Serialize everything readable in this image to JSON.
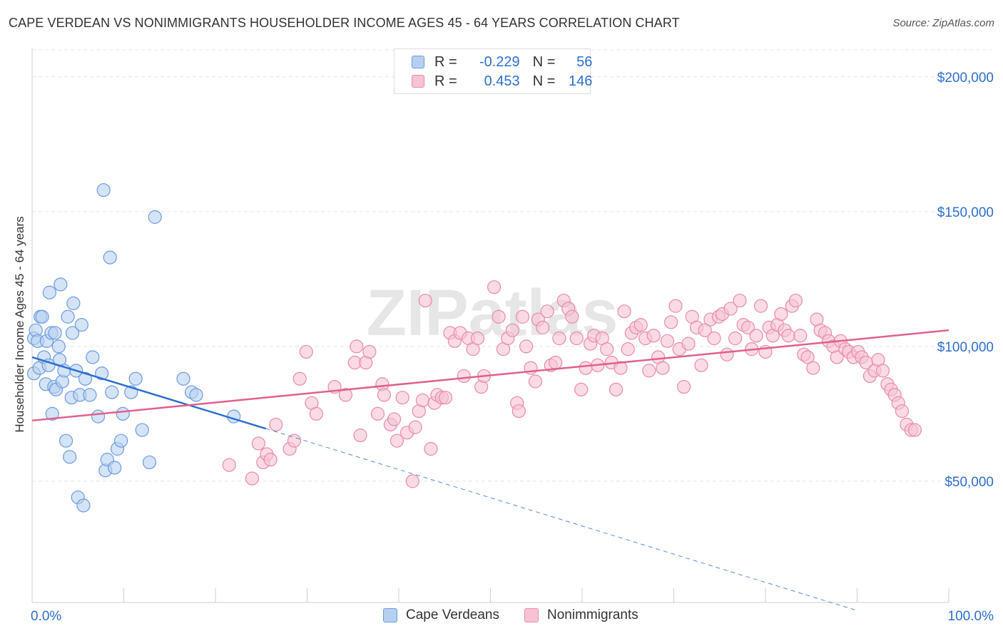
{
  "title": "CAPE VERDEAN VS NONIMMIGRANTS HOUSEHOLDER INCOME AGES 45 - 64 YEARS CORRELATION CHART",
  "source": "Source: ZipAtlas.com",
  "watermark": "ZIPatlas",
  "colors": {
    "blue_fill": "#b7d0f0",
    "blue_stroke": "#6b9be0",
    "blue_line": "#2d6fcf",
    "pink_fill": "#f7c3d4",
    "pink_stroke": "#e98aa9",
    "pink_line": "#e0618b",
    "accent_text": "#2d6fcf"
  },
  "legend": {
    "rows": [
      {
        "r_label": "R =",
        "r_value": "-0.229",
        "n_label": "N =",
        "n_value": "56"
      },
      {
        "r_label": "R =",
        "r_value": "0.453",
        "n_label": "N =",
        "n_value": "146"
      }
    ]
  },
  "bottom_legend": [
    "Cape Verdeans",
    "Nonimmigrants"
  ],
  "chart_data": {
    "type": "scatter",
    "title": "CAPE VERDEAN VS NONIMMIGRANTS HOUSEHOLDER INCOME AGES 45 - 64 YEARS CORRELATION CHART",
    "xlabel": "",
    "ylabel": "Householder Income Ages 45 - 64 years",
    "xlim": [
      0,
      100
    ],
    "ylim": [
      5000,
      210000
    ],
    "x_tick_labels": [
      "0.0%",
      "100.0%"
    ],
    "y_ticks": [
      50000,
      100000,
      150000,
      200000
    ],
    "y_tick_labels": [
      "$50,000",
      "$100,000",
      "$150,000",
      "$200,000"
    ],
    "grid": true,
    "legend_position": "top-center",
    "series": [
      {
        "name": "Cape Verdeans",
        "r": -0.229,
        "n": 56,
        "trend": {
          "x0": 0,
          "y0": 96000,
          "x1": 25.5,
          "y1": 69500,
          "dash_x1": 90,
          "dash_y1": 2000
        },
        "points": [
          [
            0.2,
            103000
          ],
          [
            0.2,
            90000
          ],
          [
            0.4,
            106000
          ],
          [
            0.6,
            102000
          ],
          [
            0.8,
            92000
          ],
          [
            0.9,
            111000
          ],
          [
            1.1,
            111000
          ],
          [
            1.3,
            96000
          ],
          [
            1.5,
            86000
          ],
          [
            1.6,
            102000
          ],
          [
            1.8,
            93000
          ],
          [
            1.9,
            120000
          ],
          [
            2.1,
            105000
          ],
          [
            2.2,
            75000
          ],
          [
            2.4,
            85000
          ],
          [
            2.5,
            105000
          ],
          [
            2.6,
            84000
          ],
          [
            2.9,
            100000
          ],
          [
            3.0,
            95000
          ],
          [
            3.1,
            123000
          ],
          [
            3.3,
            87000
          ],
          [
            3.5,
            91000
          ],
          [
            3.7,
            65000
          ],
          [
            3.9,
            111000
          ],
          [
            4.1,
            59000
          ],
          [
            4.3,
            81000
          ],
          [
            4.4,
            105000
          ],
          [
            4.5,
            116000
          ],
          [
            4.8,
            91000
          ],
          [
            5.0,
            44000
          ],
          [
            5.2,
            82000
          ],
          [
            5.4,
            108000
          ],
          [
            5.6,
            41000
          ],
          [
            5.8,
            88000
          ],
          [
            6.3,
            82000
          ],
          [
            6.6,
            96000
          ],
          [
            7.2,
            74000
          ],
          [
            7.6,
            90000
          ],
          [
            7.8,
            158000
          ],
          [
            8.0,
            54000
          ],
          [
            8.2,
            58000
          ],
          [
            8.5,
            133000
          ],
          [
            8.7,
            83000
          ],
          [
            9.0,
            55000
          ],
          [
            9.3,
            62000
          ],
          [
            9.7,
            65000
          ],
          [
            9.9,
            75000
          ],
          [
            10.8,
            83000
          ],
          [
            11.3,
            88000
          ],
          [
            12.0,
            69000
          ],
          [
            12.8,
            57000
          ],
          [
            13.4,
            148000
          ],
          [
            16.5,
            88000
          ],
          [
            17.4,
            83000
          ],
          [
            17.9,
            82000
          ],
          [
            22.0,
            74000
          ]
        ]
      },
      {
        "name": "Nonimmigrants",
        "r": 0.453,
        "n": 146,
        "trend": {
          "x0": 0,
          "y0": 72500,
          "x1": 100,
          "y1": 106000
        },
        "points": [
          [
            21.5,
            56000
          ],
          [
            24.0,
            51000
          ],
          [
            24.7,
            64000
          ],
          [
            25.2,
            57000
          ],
          [
            25.6,
            60000
          ],
          [
            26.0,
            58000
          ],
          [
            26.6,
            71000
          ],
          [
            28.1,
            62000
          ],
          [
            28.6,
            65000
          ],
          [
            29.2,
            88000
          ],
          [
            29.9,
            98000
          ],
          [
            30.5,
            79000
          ],
          [
            31.0,
            75000
          ],
          [
            33.0,
            85000
          ],
          [
            34.2,
            82000
          ],
          [
            35.2,
            94000
          ],
          [
            35.4,
            100000
          ],
          [
            35.8,
            67000
          ],
          [
            36.4,
            94000
          ],
          [
            36.8,
            98000
          ],
          [
            37.7,
            75000
          ],
          [
            38.2,
            86000
          ],
          [
            38.4,
            82000
          ],
          [
            39.1,
            71000
          ],
          [
            39.5,
            73000
          ],
          [
            39.8,
            65000
          ],
          [
            40.4,
            81000
          ],
          [
            40.9,
            68000
          ],
          [
            41.5,
            50000
          ],
          [
            41.8,
            70000
          ],
          [
            42.2,
            76000
          ],
          [
            42.6,
            80000
          ],
          [
            42.9,
            117000
          ],
          [
            43.5,
            62000
          ],
          [
            43.9,
            79000
          ],
          [
            44.2,
            82000
          ],
          [
            44.7,
            81000
          ],
          [
            45.1,
            81000
          ],
          [
            45.6,
            105000
          ],
          [
            46.1,
            102000
          ],
          [
            46.7,
            105000
          ],
          [
            47.1,
            89000
          ],
          [
            47.6,
            103000
          ],
          [
            48.1,
            99000
          ],
          [
            48.6,
            103000
          ],
          [
            49.0,
            85000
          ],
          [
            49.3,
            89000
          ],
          [
            50.4,
            122000
          ],
          [
            50.9,
            111000
          ],
          [
            51.4,
            99000
          ],
          [
            51.9,
            103000
          ],
          [
            52.4,
            106000
          ],
          [
            52.9,
            79000
          ],
          [
            53.1,
            76000
          ],
          [
            53.5,
            111000
          ],
          [
            53.9,
            100000
          ],
          [
            54.4,
            92000
          ],
          [
            54.9,
            87000
          ],
          [
            55.2,
            110000
          ],
          [
            55.7,
            107000
          ],
          [
            56.2,
            113000
          ],
          [
            56.6,
            93000
          ],
          [
            57.1,
            94000
          ],
          [
            57.5,
            103000
          ],
          [
            58.0,
            117000
          ],
          [
            58.5,
            114000
          ],
          [
            58.9,
            111000
          ],
          [
            59.4,
            103000
          ],
          [
            59.9,
            84000
          ],
          [
            60.4,
            92000
          ],
          [
            60.9,
            101000
          ],
          [
            61.3,
            104000
          ],
          [
            61.7,
            93000
          ],
          [
            62.2,
            103000
          ],
          [
            62.7,
            99000
          ],
          [
            63.2,
            94000
          ],
          [
            63.7,
            84000
          ],
          [
            64.2,
            92000
          ],
          [
            64.6,
            113000
          ],
          [
            65.0,
            99000
          ],
          [
            65.4,
            105000
          ],
          [
            65.9,
            107000
          ],
          [
            66.4,
            108000
          ],
          [
            66.9,
            103000
          ],
          [
            67.3,
            91000
          ],
          [
            67.8,
            104000
          ],
          [
            68.3,
            96000
          ],
          [
            68.8,
            92000
          ],
          [
            69.3,
            102000
          ],
          [
            69.7,
            109000
          ],
          [
            70.2,
            115000
          ],
          [
            70.6,
            99000
          ],
          [
            71.1,
            85000
          ],
          [
            71.6,
            101000
          ],
          [
            72.0,
            111000
          ],
          [
            72.5,
            107000
          ],
          [
            73.0,
            93000
          ],
          [
            73.4,
            106000
          ],
          [
            74.0,
            110000
          ],
          [
            74.4,
            103000
          ],
          [
            74.9,
            111000
          ],
          [
            75.3,
            112000
          ],
          [
            75.8,
            97000
          ],
          [
            76.2,
            114000
          ],
          [
            76.7,
            103000
          ],
          [
            77.2,
            117000
          ],
          [
            77.6,
            108000
          ],
          [
            78.1,
            107000
          ],
          [
            78.5,
            99000
          ],
          [
            79.0,
            104000
          ],
          [
            79.5,
            115000
          ],
          [
            80.0,
            98000
          ],
          [
            80.4,
            107000
          ],
          [
            80.8,
            104000
          ],
          [
            81.3,
            108000
          ],
          [
            81.7,
            112000
          ],
          [
            82.1,
            106000
          ],
          [
            82.5,
            104000
          ],
          [
            82.9,
            115000
          ],
          [
            83.3,
            117000
          ],
          [
            83.8,
            104000
          ],
          [
            84.2,
            97000
          ],
          [
            84.6,
            96000
          ],
          [
            85.2,
            92000
          ],
          [
            85.6,
            110000
          ],
          [
            86.0,
            106000
          ],
          [
            86.5,
            105000
          ],
          [
            86.9,
            102000
          ],
          [
            87.4,
            100000
          ],
          [
            87.8,
            96000
          ],
          [
            88.2,
            102000
          ],
          [
            88.7,
            99000
          ],
          [
            89.1,
            98000
          ],
          [
            89.6,
            96000
          ],
          [
            90.1,
            98000
          ],
          [
            90.5,
            96000
          ],
          [
            91.0,
            94000
          ],
          [
            91.4,
            89000
          ],
          [
            91.9,
            91000
          ],
          [
            92.3,
            95000
          ],
          [
            92.8,
            91000
          ],
          [
            93.3,
            86000
          ],
          [
            93.7,
            84000
          ],
          [
            94.1,
            82000
          ],
          [
            94.5,
            79000
          ],
          [
            94.9,
            76000
          ],
          [
            95.4,
            71000
          ],
          [
            95.9,
            69000
          ],
          [
            96.3,
            69000
          ]
        ]
      }
    ]
  }
}
